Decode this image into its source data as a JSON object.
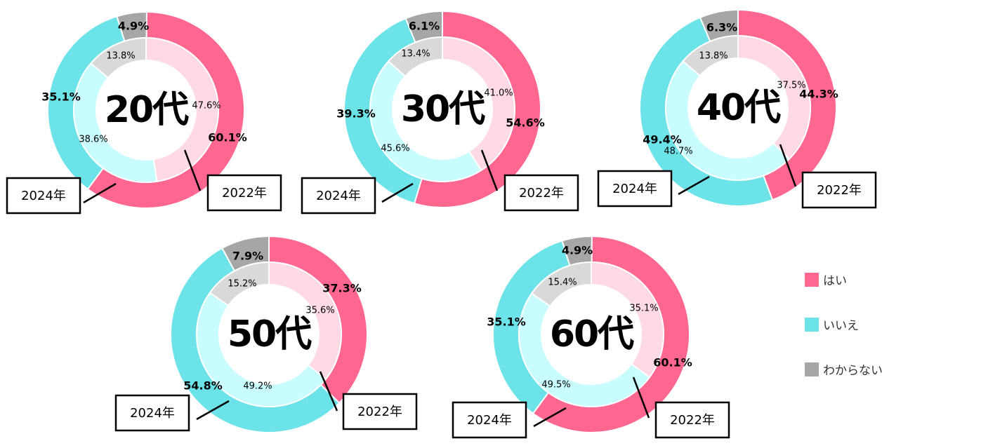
{
  "chart_data": {
    "type": "pie",
    "subtype": "double-donut",
    "categories": [
      "はい",
      "いいえ",
      "わからない"
    ],
    "colors": {
      "outer": [
        "#ff6690",
        "#6ce3e8",
        "#a6a6a6"
      ],
      "inner": [
        "#ffd9e3",
        "#c8fcff",
        "#d9d9d9"
      ]
    },
    "charts": [
      {
        "title": "20代",
        "series": [
          {
            "name": "2022年",
            "ring": "outer",
            "values": [
              60.1,
              35.1,
              4.9
            ],
            "labels": [
              "60.1%",
              "35.1%",
              "4.9%"
            ]
          },
          {
            "name": "2024年",
            "ring": "inner",
            "values": [
              47.6,
              38.6,
              13.8
            ],
            "labels": [
              "47.6%",
              "38.6%",
              "13.8%"
            ]
          }
        ]
      },
      {
        "title": "30代",
        "series": [
          {
            "name": "2022年",
            "ring": "outer",
            "values": [
              54.6,
              39.3,
              6.1
            ],
            "labels": [
              "54.6%",
              "39.3%",
              "6.1%"
            ]
          },
          {
            "name": "2024年",
            "ring": "inner",
            "values": [
              41.0,
              45.6,
              13.4
            ],
            "labels": [
              "41.0%",
              "45.6%",
              "13.4%"
            ]
          }
        ]
      },
      {
        "title": "40代",
        "series": [
          {
            "name": "2022年",
            "ring": "outer",
            "values": [
              44.3,
              49.4,
              6.3
            ],
            "labels": [
              "44.3%",
              "49.4%",
              "6.3%"
            ]
          },
          {
            "name": "2024年",
            "ring": "inner",
            "values": [
              37.5,
              48.7,
              13.8
            ],
            "labels": [
              "37.5%",
              "48.7%",
              "13.8%"
            ]
          }
        ]
      },
      {
        "title": "50代",
        "series": [
          {
            "name": "2022年",
            "ring": "outer",
            "values": [
              37.3,
              54.8,
              7.9
            ],
            "labels": [
              "37.3%",
              "54.8%",
              "7.9%"
            ]
          },
          {
            "name": "2024年",
            "ring": "inner",
            "values": [
              35.6,
              49.2,
              15.2
            ],
            "labels": [
              "35.6%",
              "49.2%",
              "15.2%"
            ]
          }
        ]
      },
      {
        "title": "60代",
        "series": [
          {
            "name": "2022年",
            "ring": "outer",
            "values": [
              60.1,
              35.1,
              4.9
            ],
            "labels": [
              "60.1%",
              "35.1%",
              "4.9%"
            ]
          },
          {
            "name": "2024年",
            "ring": "inner",
            "values": [
              35.1,
              49.5,
              15.4
            ],
            "labels": [
              "35.1%",
              "49.5%",
              "15.4%"
            ]
          }
        ]
      }
    ],
    "legend": {
      "position": "right",
      "items": [
        "はい",
        "いいえ",
        "わからない"
      ]
    }
  }
}
